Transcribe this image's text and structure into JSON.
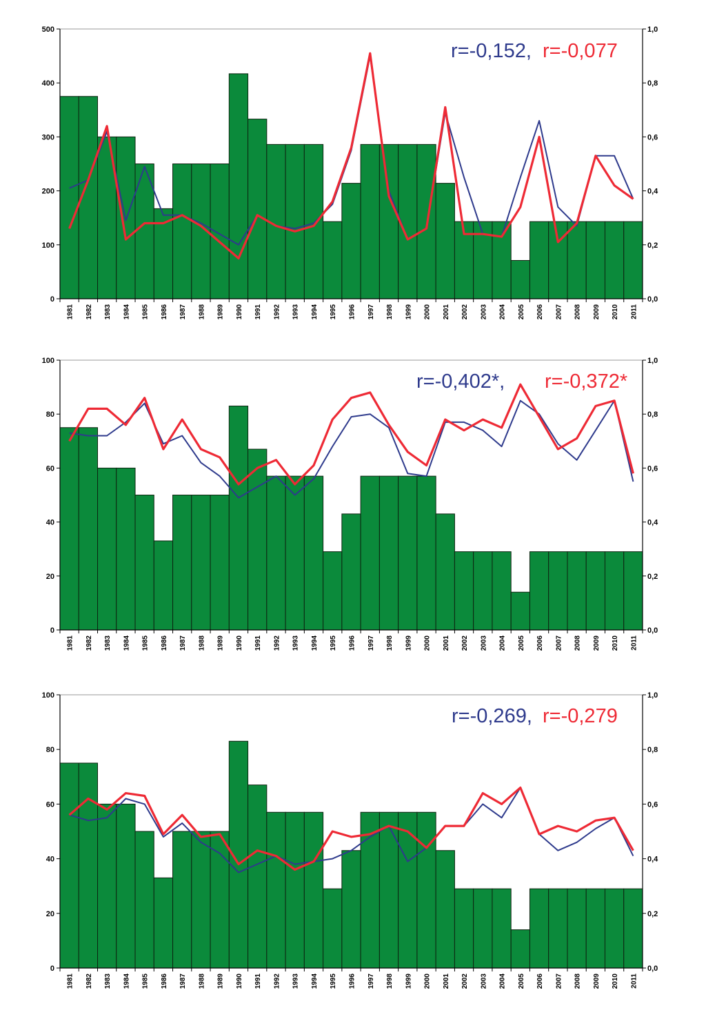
{
  "colors": {
    "bars": "#0b8a3b",
    "bar_stroke": "#0d2410",
    "blue_line": "#2e3a8c",
    "red_line": "#ee2a35"
  },
  "years": [
    "1981",
    "1982",
    "1983",
    "1984",
    "1985",
    "1986",
    "1987",
    "1988",
    "1989",
    "1990",
    "1991",
    "1992",
    "1993",
    "1994",
    "1995",
    "1996",
    "1997",
    "1998",
    "1999",
    "2000",
    "2001",
    "2002",
    "2003",
    "2004",
    "2005",
    "2006",
    "2007",
    "2008",
    "2009",
    "2010",
    "2011"
  ],
  "chart_data": [
    {
      "type": "bar+line",
      "left_axis": {
        "range": [
          0,
          500
        ],
        "ticks": [
          "0",
          "100",
          "200",
          "300",
          "400",
          "500"
        ]
      },
      "right_axis": {
        "range": [
          0,
          1
        ],
        "ticks": [
          "0,0",
          "0,2",
          "0,4",
          "0,6",
          "0,8",
          "1,0"
        ]
      },
      "annotations": {
        "blue": "r=-0,152,",
        "red": "r=-0,077"
      },
      "bars": [
        375,
        375,
        300,
        300,
        250,
        167,
        250,
        250,
        250,
        417,
        333,
        286,
        286,
        286,
        143,
        214,
        286,
        286,
        286,
        286,
        214,
        143,
        143,
        143,
        71,
        143,
        143,
        143,
        143,
        143,
        143
      ],
      "series": [
        {
          "color": "blue",
          "values": [
            0.41,
            0.44,
            0.62,
            0.29,
            0.49,
            0.31,
            0.31,
            0.28,
            0.24,
            0.2,
            0.31,
            0.27,
            0.26,
            0.28,
            0.35,
            0.55,
            0.9,
            0.4,
            0.22,
            0.26,
            0.69,
            0.45,
            0.24,
            0.23,
            0.45,
            0.66,
            0.34,
            0.27,
            0.53,
            0.53,
            0.37
          ]
        },
        {
          "color": "red",
          "values": [
            0.26,
            0.44,
            0.64,
            0.22,
            0.28,
            0.28,
            0.31,
            0.27,
            0.21,
            0.15,
            0.31,
            0.27,
            0.25,
            0.27,
            0.36,
            0.56,
            0.91,
            0.38,
            0.22,
            0.26,
            0.71,
            0.24,
            0.24,
            0.23,
            0.34,
            0.6,
            0.21,
            0.28,
            0.53,
            0.42,
            0.37
          ]
        }
      ]
    },
    {
      "type": "bar+line",
      "left_axis": {
        "range": [
          0,
          100
        ],
        "ticks": [
          "0",
          "20",
          "40",
          "60",
          "80",
          "100"
        ]
      },
      "right_axis": {
        "range": [
          0,
          1
        ],
        "ticks": [
          "0,0",
          "0,2",
          "0,4",
          "0,6",
          "0,8",
          "1,0"
        ]
      },
      "annotations": {
        "blue": "r=-0,402*,",
        "red": "r=-0,372*"
      },
      "bars": [
        75,
        75,
        60,
        60,
        50,
        33,
        50,
        50,
        50,
        83,
        67,
        57,
        57,
        57,
        29,
        43,
        57,
        57,
        57,
        57,
        43,
        29,
        29,
        29,
        14,
        29,
        29,
        29,
        29,
        29,
        29
      ],
      "series": [
        {
          "color": "blue",
          "values": [
            0.73,
            0.72,
            0.72,
            0.77,
            0.84,
            0.69,
            0.72,
            0.62,
            0.57,
            0.49,
            0.53,
            0.57,
            0.5,
            0.56,
            0.68,
            0.79,
            0.8,
            0.75,
            0.58,
            0.57,
            0.77,
            0.77,
            0.74,
            0.68,
            0.85,
            0.8,
            0.69,
            0.63,
            0.74,
            0.85,
            0.55
          ]
        },
        {
          "color": "red",
          "values": [
            0.7,
            0.82,
            0.82,
            0.76,
            0.86,
            0.67,
            0.78,
            0.67,
            0.64,
            0.54,
            0.6,
            0.63,
            0.54,
            0.61,
            0.78,
            0.86,
            0.88,
            0.76,
            0.66,
            0.61,
            0.78,
            0.74,
            0.78,
            0.75,
            0.91,
            0.79,
            0.67,
            0.71,
            0.83,
            0.85,
            0.58
          ]
        }
      ]
    },
    {
      "type": "bar+line",
      "left_axis": {
        "range": [
          0,
          100
        ],
        "ticks": [
          "0",
          "20",
          "40",
          "60",
          "80",
          "100"
        ]
      },
      "right_axis": {
        "range": [
          0,
          1
        ],
        "ticks": [
          "0,0",
          "0,2",
          "0,4",
          "0,6",
          "0,8",
          "1,0"
        ]
      },
      "annotations": {
        "blue": "r=-0,269,",
        "red": "r=-0,279"
      },
      "bars": [
        75,
        75,
        60,
        60,
        50,
        33,
        50,
        50,
        50,
        83,
        67,
        57,
        57,
        57,
        29,
        43,
        57,
        57,
        57,
        57,
        43,
        29,
        29,
        29,
        14,
        29,
        29,
        29,
        29,
        29,
        29
      ],
      "series": [
        {
          "color": "blue",
          "values": [
            0.56,
            0.54,
            0.55,
            0.62,
            0.6,
            0.48,
            0.53,
            0.46,
            0.42,
            0.35,
            0.38,
            0.41,
            0.38,
            0.39,
            0.4,
            0.43,
            0.48,
            0.52,
            0.39,
            0.44,
            0.52,
            0.52,
            0.6,
            0.55,
            0.66,
            0.49,
            0.43,
            0.46,
            0.51,
            0.55,
            0.41
          ]
        },
        {
          "color": "red",
          "values": [
            0.56,
            0.62,
            0.58,
            0.64,
            0.63,
            0.49,
            0.56,
            0.48,
            0.49,
            0.38,
            0.43,
            0.41,
            0.36,
            0.39,
            0.5,
            0.48,
            0.49,
            0.52,
            0.5,
            0.44,
            0.52,
            0.52,
            0.64,
            0.6,
            0.66,
            0.49,
            0.52,
            0.5,
            0.54,
            0.55,
            0.43
          ]
        }
      ]
    }
  ]
}
